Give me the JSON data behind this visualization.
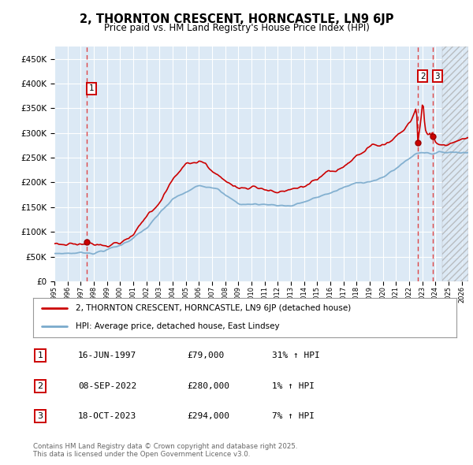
{
  "title": "2, THORNTON CRESCENT, HORNCASTLE, LN9 6JP",
  "subtitle": "Price paid vs. HM Land Registry's House Price Index (HPI)",
  "plot_bg_color": "#dce9f5",
  "grid_color": "#ffffff",
  "red_line_color": "#cc0000",
  "blue_line_color": "#7aaacc",
  "dashed_line_color": "#dd3333",
  "ylim_min": 0,
  "ylim_max": 475000,
  "xmin": 1995.0,
  "xmax": 2026.5,
  "sale_dates": [
    1997.46,
    2022.69,
    2023.8
  ],
  "sale_prices": [
    79000,
    280000,
    294000
  ],
  "sale_labels": [
    "1",
    "2",
    "3"
  ],
  "legend_entries": [
    "2, THORNTON CRESCENT, HORNCASTLE, LN9 6JP (detached house)",
    "HPI: Average price, detached house, East Lindsey"
  ],
  "table_rows": [
    [
      "1",
      "16-JUN-1997",
      "£79,000",
      "31% ↑ HPI"
    ],
    [
      "2",
      "08-SEP-2022",
      "£280,000",
      "1% ↑ HPI"
    ],
    [
      "3",
      "18-OCT-2023",
      "£294,000",
      "7% ↑ HPI"
    ]
  ],
  "footnote": "Contains HM Land Registry data © Crown copyright and database right 2025.\nThis data is licensed under the Open Government Licence v3.0.",
  "yticks": [
    0,
    50000,
    100000,
    150000,
    200000,
    250000,
    300000,
    350000,
    400000,
    450000
  ]
}
